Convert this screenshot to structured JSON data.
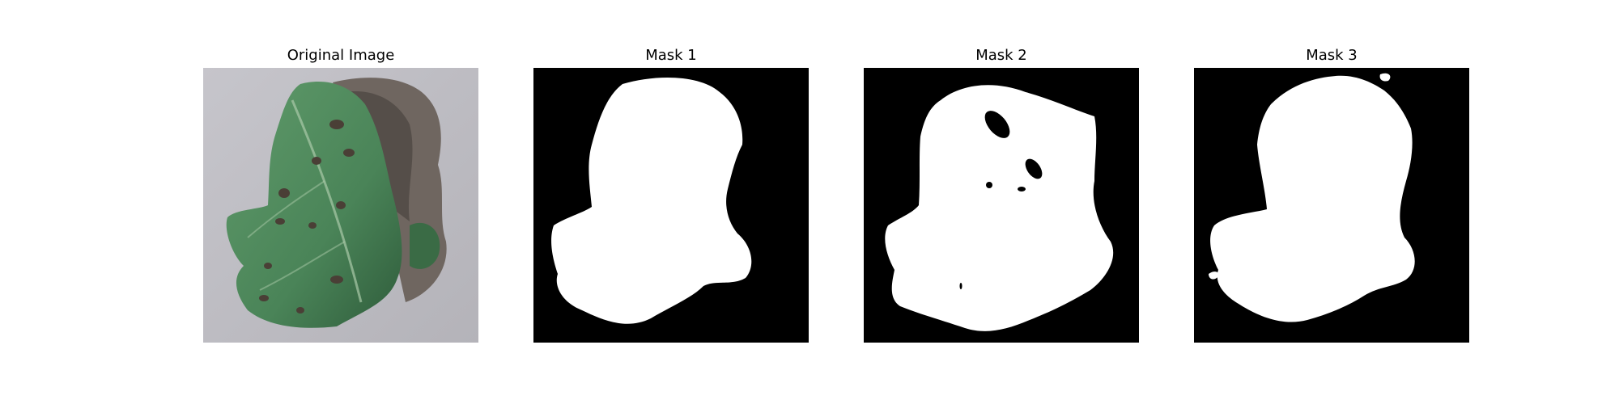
{
  "figure": {
    "panels": [
      {
        "title": "Original Image",
        "kind": "photo",
        "subject": "leaf-photo"
      },
      {
        "title": "Mask 1",
        "kind": "mask"
      },
      {
        "title": "Mask 2",
        "kind": "mask"
      },
      {
        "title": "Mask 3",
        "kind": "mask"
      }
    ]
  },
  "colors": {
    "background": "#ffffff",
    "mask_fg": "#ffffff",
    "mask_bg": "#000000",
    "surface": "#bdbcc2",
    "leaf_green": "#4f8a5d",
    "leaf_dark": "#2f5c3b",
    "lesion": "#4a3f36",
    "dried": "#6f6660"
  }
}
